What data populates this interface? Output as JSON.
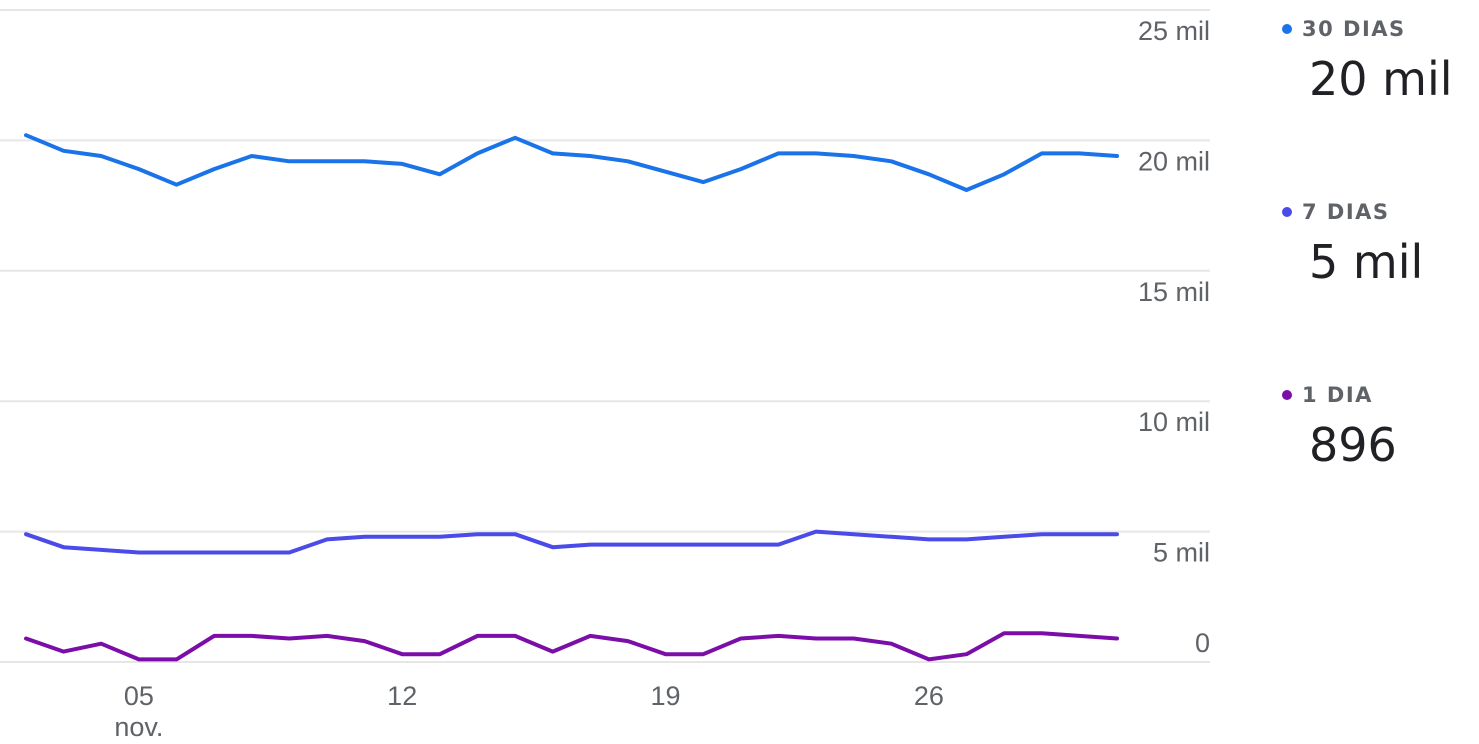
{
  "chart_data": {
    "type": "line",
    "x": [
      "2",
      "3",
      "4",
      "5",
      "6",
      "7",
      "8",
      "9",
      "10",
      "11",
      "12",
      "13",
      "14",
      "15",
      "16",
      "17",
      "18",
      "19",
      "20",
      "21",
      "22",
      "23",
      "24",
      "25",
      "26",
      "27",
      "28",
      "29",
      "30",
      "1"
    ],
    "x_tick_labels": [
      "05",
      "12",
      "19",
      "26"
    ],
    "x_tick_month": "nov.",
    "y_tick_labels": [
      "25 mil",
      "20 mil",
      "15 mil",
      "10 mil",
      "5 mil",
      "0"
    ],
    "ylim": [
      0,
      25000
    ],
    "grid": true,
    "legend_position": "right",
    "series": [
      {
        "name": "30 DIAS",
        "color": "#1a73e8",
        "values": [
          20200,
          19600,
          19400,
          18900,
          18300,
          18900,
          19400,
          19200,
          19200,
          19200,
          19100,
          18700,
          19500,
          20100,
          19500,
          19400,
          19200,
          18800,
          18400,
          18900,
          19500,
          19500,
          19400,
          19200,
          18700,
          18100,
          18700,
          19500,
          19500,
          19400
        ]
      },
      {
        "name": "7 DIAS",
        "color": "#4a4be8",
        "values": [
          4900,
          4400,
          4300,
          4200,
          4200,
          4200,
          4200,
          4200,
          4700,
          4800,
          4800,
          4800,
          4900,
          4900,
          4400,
          4500,
          4500,
          4500,
          4500,
          4500,
          4500,
          5000,
          4900,
          4800,
          4700,
          4700,
          4800,
          4900,
          4900,
          4900
        ]
      },
      {
        "name": "1 DIA",
        "color": "#7b0ea8",
        "values": [
          900,
          400,
          700,
          100,
          100,
          1000,
          1000,
          900,
          1000,
          800,
          300,
          300,
          1000,
          1000,
          400,
          1000,
          800,
          300,
          300,
          900,
          1000,
          900,
          900,
          700,
          100,
          300,
          1100,
          1100,
          1000,
          900
        ]
      }
    ]
  },
  "legend": [
    {
      "label": "30 DIAS",
      "value": "20 mil",
      "color": "#1a73e8"
    },
    {
      "label": "7 DIAS",
      "value": "5 mil",
      "color": "#4a4be8"
    },
    {
      "label": "1 DIA",
      "value": "896",
      "color": "#7b0ea8"
    }
  ]
}
